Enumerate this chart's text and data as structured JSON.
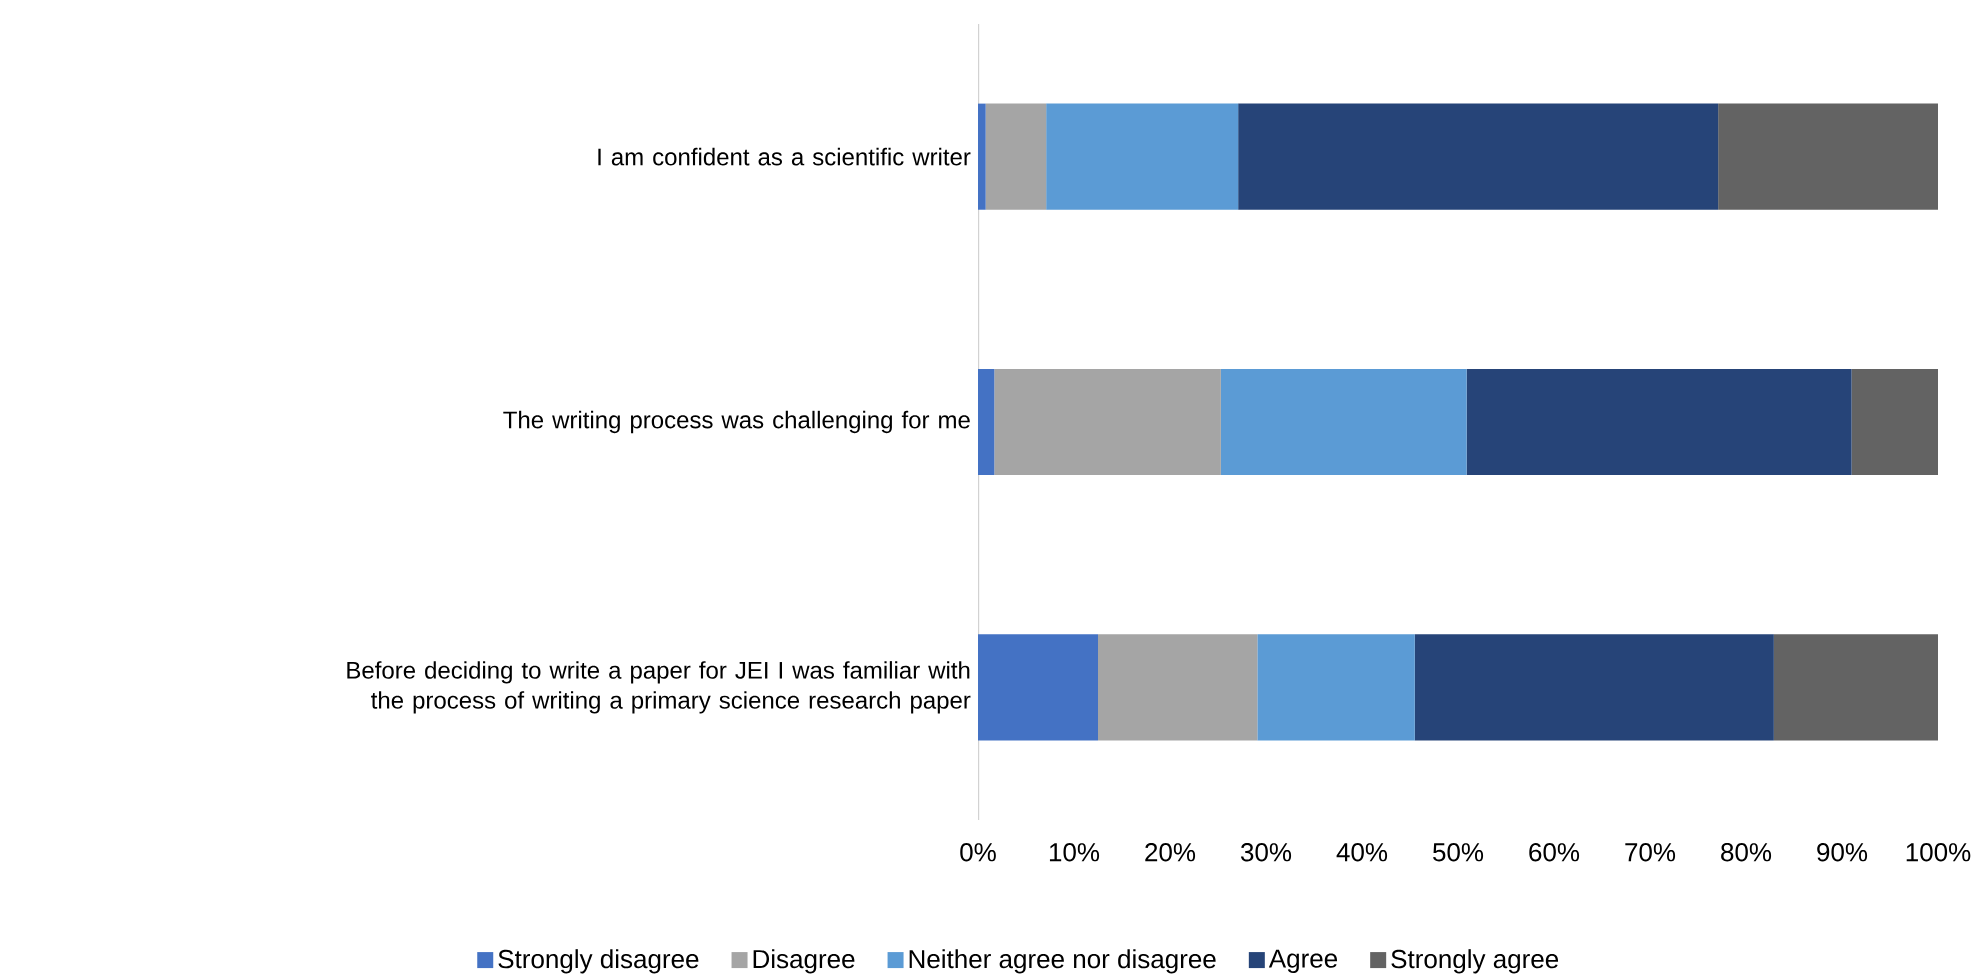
{
  "chart_data": {
    "type": "bar",
    "orientation": "horizontal",
    "stacked": true,
    "categories": [
      "I am confident as a scientific writer",
      "The writing process was challenging for me",
      "Before deciding to write a paper for JEI I was familiar with the process of writing a primary science research paper"
    ],
    "series": [
      {
        "name": "Strongly disagree",
        "color": "#4472c4",
        "values": [
          0.8,
          1.7,
          12.5
        ]
      },
      {
        "name": "Disagree",
        "color": "#a5a5a5",
        "values": [
          6.3,
          23.6,
          16.6
        ]
      },
      {
        "name": "Neither agree nor disagree",
        "color": "#5b9bd5",
        "values": [
          20.0,
          25.6,
          16.4
        ]
      },
      {
        "name": "Agree",
        "color": "#264478",
        "values": [
          50.0,
          40.1,
          37.4
        ]
      },
      {
        "name": "Strongly agree",
        "color": "#636363",
        "values": [
          22.9,
          9.0,
          17.1
        ]
      }
    ],
    "xlim": [
      0,
      100
    ],
    "xticks": [
      {
        "value": 0,
        "label": "0%"
      },
      {
        "value": 10,
        "label": "10%"
      },
      {
        "value": 20,
        "label": "20%"
      },
      {
        "value": 30,
        "label": "30%"
      },
      {
        "value": 40,
        "label": "40%"
      },
      {
        "value": 50,
        "label": "50%"
      },
      {
        "value": 60,
        "label": "60%"
      },
      {
        "value": 70,
        "label": "70%"
      },
      {
        "value": 80,
        "label": "80%"
      },
      {
        "value": 90,
        "label": "90%"
      },
      {
        "value": 100,
        "label": "100%"
      }
    ],
    "legend": "bottom"
  }
}
